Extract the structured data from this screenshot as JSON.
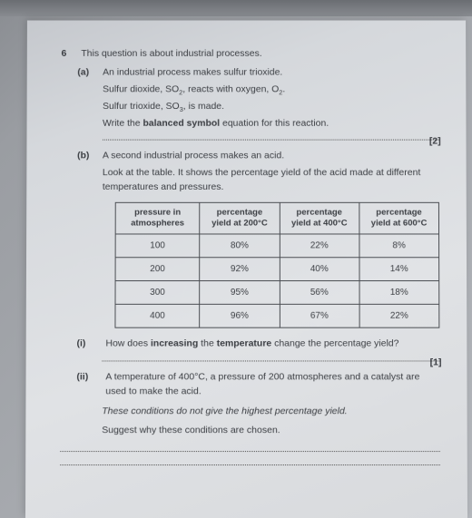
{
  "question_number": "6",
  "intro": "This question is about industrial processes.",
  "part_a": {
    "label": "(a)",
    "line1": "An industrial process makes sulfur trioxide.",
    "line2_pre": "Sulfur dioxide, SO",
    "line2_sub1": "2",
    "line2_mid": ", reacts with oxygen, O",
    "line2_sub2": "2",
    "line2_end": ".",
    "line3_pre": "Sulfur trioxide, SO",
    "line3_sub": "3",
    "line3_end": ", is made.",
    "line4_pre": "Write the ",
    "line4_bold": "balanced symbol",
    "line4_post": " equation for this reaction.",
    "marks": "[2]"
  },
  "part_b": {
    "label": "(b)",
    "line1": "A second industrial process makes an acid.",
    "line2": "Look at the table. It shows the percentage yield of the acid made at different temperatures and pressures."
  },
  "table": {
    "headers": [
      "pressure in atmospheres",
      "percentage yield at 200°C",
      "percentage yield at 400°C",
      "percentage yield at 600°C"
    ],
    "rows": [
      [
        "100",
        "80%",
        "22%",
        "8%"
      ],
      [
        "200",
        "92%",
        "40%",
        "14%"
      ],
      [
        "300",
        "95%",
        "56%",
        "18%"
      ],
      [
        "400",
        "96%",
        "67%",
        "22%"
      ]
    ]
  },
  "part_i": {
    "label": "(i)",
    "text_pre": "How does ",
    "bold1": "increasing",
    "mid": " the ",
    "bold2": "temperature",
    "text_post": " change the percentage yield?",
    "marks": "[1]"
  },
  "part_ii": {
    "label": "(ii)",
    "line1": "A temperature of 400°C, a pressure of 200 atmospheres and a catalyst are used to make the acid.",
    "line2": "These conditions do not give the highest percentage yield.",
    "line3": "Suggest why these conditions are chosen."
  }
}
